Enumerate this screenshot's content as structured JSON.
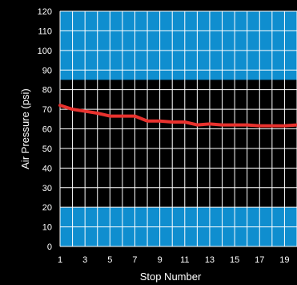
{
  "chart_data": {
    "type": "line",
    "title": "",
    "xlabel": "Stop Number",
    "ylabel": "Air Pressure (psi)",
    "xlim": [
      1,
      20
    ],
    "ylim": [
      0,
      120
    ],
    "x_ticks": [
      1,
      3,
      5,
      7,
      9,
      11,
      13,
      15,
      17,
      19
    ],
    "y_ticks": [
      0,
      10,
      20,
      30,
      40,
      50,
      60,
      70,
      80,
      90,
      100,
      110,
      120
    ],
    "grid": true,
    "bands": [
      {
        "from": 85,
        "to": 120,
        "color": "#0f8ecf"
      },
      {
        "from": 0,
        "to": 20,
        "color": "#0f8ecf"
      }
    ],
    "series": [
      {
        "color": "#e8322e",
        "x": [
          1,
          2,
          3,
          4,
          5,
          6,
          7,
          8,
          9,
          10,
          11,
          12,
          13,
          14,
          15,
          16,
          17,
          18,
          19,
          20
        ],
        "values": [
          72,
          70,
          69,
          68,
          66.5,
          66.5,
          66.5,
          64,
          64,
          63.5,
          63.5,
          62,
          62.5,
          62,
          62,
          62,
          61.5,
          61.5,
          61.5,
          62
        ]
      }
    ],
    "colors": {
      "background": "#000000",
      "plot_background": "#000000",
      "grid": "#ffffff",
      "text": "#ffffff"
    }
  }
}
